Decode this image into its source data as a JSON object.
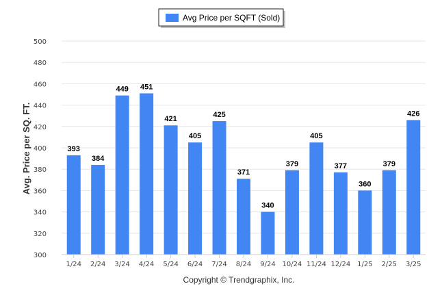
{
  "chart_data": {
    "type": "bar",
    "categories": [
      "1/24",
      "2/24",
      "3/24",
      "4/24",
      "5/24",
      "6/24",
      "7/24",
      "8/24",
      "9/24",
      "10/24",
      "11/24",
      "12/24",
      "1/25",
      "2/25",
      "3/25"
    ],
    "series": [
      {
        "name": "Avg Price per SQFT (Sold)",
        "values": [
          393,
          384,
          449,
          451,
          421,
          405,
          425,
          371,
          340,
          379,
          405,
          377,
          360,
          379,
          426
        ]
      }
    ],
    "ylabel": "Avg. Price per SQ. FT.",
    "xlabel": "",
    "ylim": [
      300,
      500
    ],
    "yticks": [
      300,
      320,
      340,
      360,
      380,
      400,
      420,
      440,
      460,
      480,
      500
    ],
    "grid": true,
    "legend": "top-center",
    "bar_color": "#4286f4"
  },
  "footer": {
    "copyright": "Copyright © Trendgraphix, Inc."
  }
}
